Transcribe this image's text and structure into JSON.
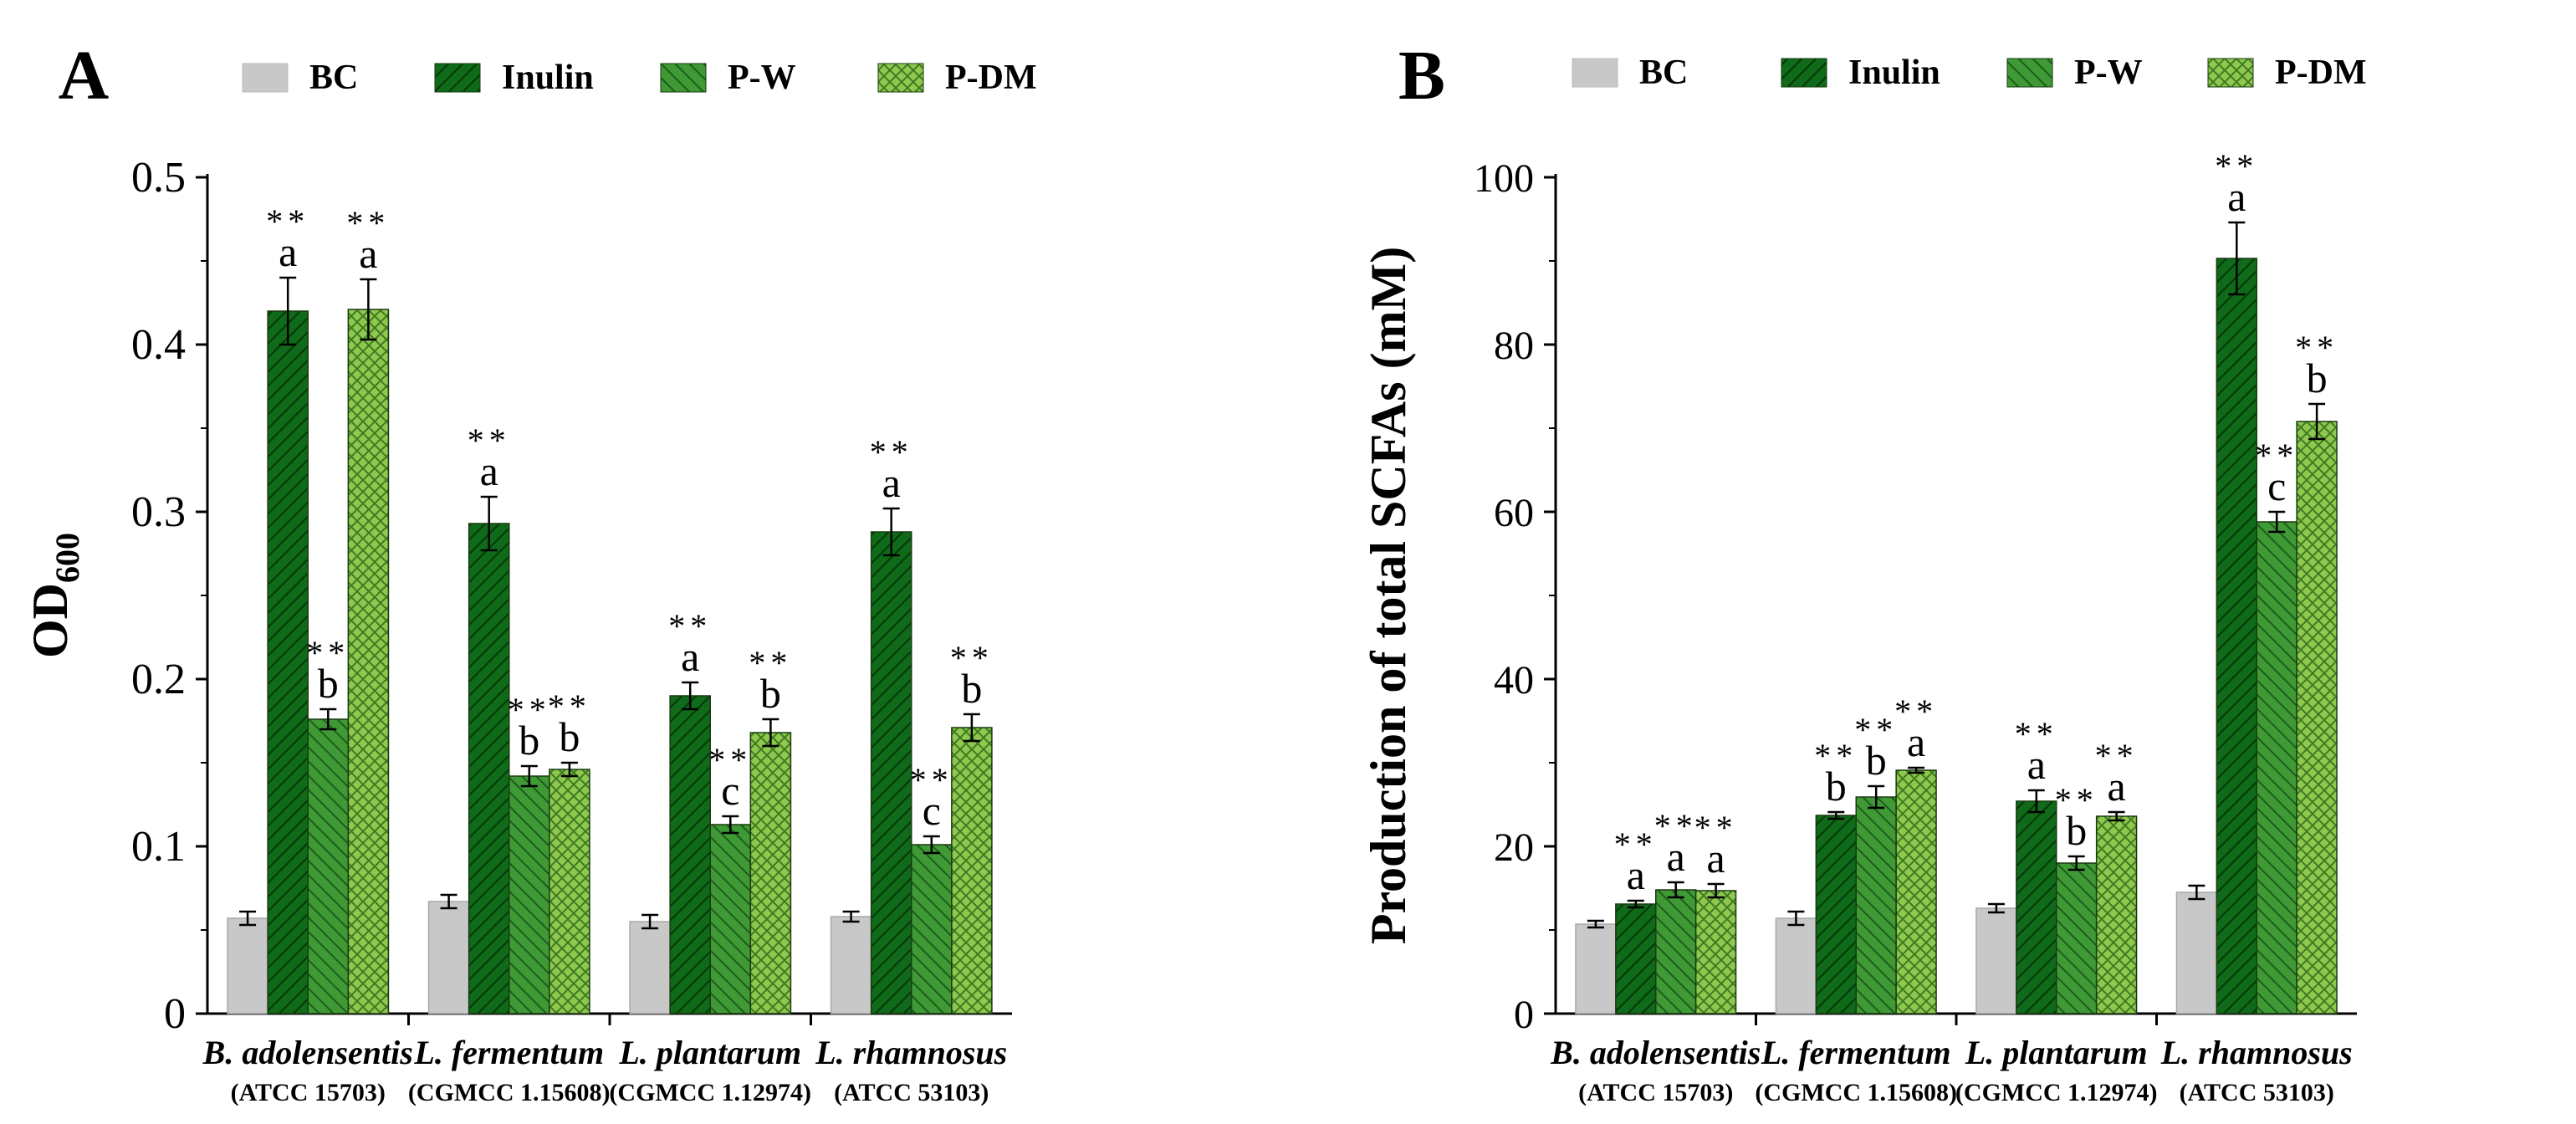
{
  "legend": [
    {
      "label": "BC",
      "pattern": "solid-gray"
    },
    {
      "label": "Inulin",
      "pattern": "dark-hatch"
    },
    {
      "label": "P-W",
      "pattern": "mid-hatch"
    },
    {
      "label": "P-DM",
      "pattern": "cross-hatch"
    }
  ],
  "colors": {
    "bc": "#c8c8c8",
    "inulin": "#0f6a1a",
    "pw": "#3f9a36",
    "pdm": "#8ec84e",
    "axis": "#000000"
  },
  "chart_data": [
    {
      "panel": "A",
      "type": "bar",
      "ylabel": "OD",
      "ylabel_sub": "600",
      "ylim": [
        0,
        0.5
      ],
      "yticks": [
        0,
        0.1,
        0.2,
        0.3,
        0.4,
        0.5
      ],
      "ytick_labels": [
        "0",
        "0.1",
        "0.2",
        "0.3",
        "0.4",
        "0.5"
      ],
      "categories": [
        {
          "name": "B. adolensentis",
          "strain": "(ATCC 15703)"
        },
        {
          "name": "L. fermentum",
          "strain": "(CGMCC 1.15608)"
        },
        {
          "name": "L. plantarum",
          "strain": "(CGMCC 1.12974)"
        },
        {
          "name": "L. rhamnosus",
          "strain": "(ATCC 53103)"
        }
      ],
      "series": [
        {
          "name": "BC",
          "values": [
            0.057,
            0.067,
            0.055,
            0.058
          ],
          "errors": [
            0.004,
            0.004,
            0.004,
            0.003
          ],
          "sig": [
            "",
            "",
            "",
            ""
          ],
          "letters": [
            "",
            "",
            "",
            ""
          ]
        },
        {
          "name": "Inulin",
          "values": [
            0.42,
            0.293,
            0.19,
            0.288
          ],
          "errors": [
            0.02,
            0.016,
            0.008,
            0.014
          ],
          "sig": [
            "**",
            "**",
            "**",
            "**"
          ],
          "letters": [
            "a",
            "a",
            "a",
            "a"
          ]
        },
        {
          "name": "P-W",
          "values": [
            0.176,
            0.142,
            0.113,
            0.101
          ],
          "errors": [
            0.006,
            0.006,
            0.005,
            0.005
          ],
          "sig": [
            "**",
            "**",
            "**",
            "**"
          ],
          "letters": [
            "b",
            "b",
            "c",
            "c"
          ]
        },
        {
          "name": "P-DM",
          "values": [
            0.421,
            0.146,
            0.168,
            0.171
          ],
          "errors": [
            0.018,
            0.004,
            0.008,
            0.008
          ],
          "sig": [
            "**",
            "**",
            "**",
            "**"
          ],
          "letters": [
            "a",
            "b",
            "b",
            "b"
          ]
        }
      ]
    },
    {
      "panel": "B",
      "type": "bar",
      "ylabel": "Production of total SCFAs (mM)",
      "ylabel_sub": "",
      "ylim": [
        0,
        100
      ],
      "yticks": [
        0,
        20,
        40,
        60,
        80,
        100
      ],
      "ytick_labels": [
        "0",
        "20",
        "40",
        "60",
        "80",
        "100"
      ],
      "categories": [
        {
          "name": "B. adolensentis",
          "strain": "(ATCC 15703)"
        },
        {
          "name": "L. fermentum",
          "strain": "(CGMCC 1.15608)"
        },
        {
          "name": "L. plantarum",
          "strain": "(CGMCC 1.12974)"
        },
        {
          "name": "L. rhamnosus",
          "strain": "(ATCC 53103)"
        }
      ],
      "series": [
        {
          "name": "BC",
          "values": [
            10.7,
            11.4,
            12.6,
            14.5
          ],
          "errors": [
            0.4,
            0.8,
            0.5,
            0.8
          ],
          "sig": [
            "",
            "",
            "",
            ""
          ],
          "letters": [
            "",
            "",
            "",
            ""
          ]
        },
        {
          "name": "Inulin",
          "values": [
            13.1,
            23.7,
            25.4,
            90.3
          ],
          "errors": [
            0.4,
            0.4,
            1.3,
            4.3
          ],
          "sig": [
            "**",
            "**",
            "**",
            "**"
          ],
          "letters": [
            "a",
            "b",
            "a",
            "a"
          ]
        },
        {
          "name": "P-W",
          "values": [
            14.8,
            25.9,
            18.0,
            58.8
          ],
          "errors": [
            0.9,
            1.3,
            0.8,
            1.2
          ],
          "sig": [
            "**",
            "**",
            "**",
            "**"
          ],
          "letters": [
            "a",
            "b",
            "b",
            "c"
          ]
        },
        {
          "name": "P-DM",
          "values": [
            14.7,
            29.1,
            23.6,
            70.8
          ],
          "errors": [
            0.8,
            0.3,
            0.5,
            2.1
          ],
          "sig": [
            "**",
            "**",
            "**",
            "**"
          ],
          "letters": [
            "a",
            "a",
            "a",
            "b"
          ]
        }
      ]
    }
  ]
}
